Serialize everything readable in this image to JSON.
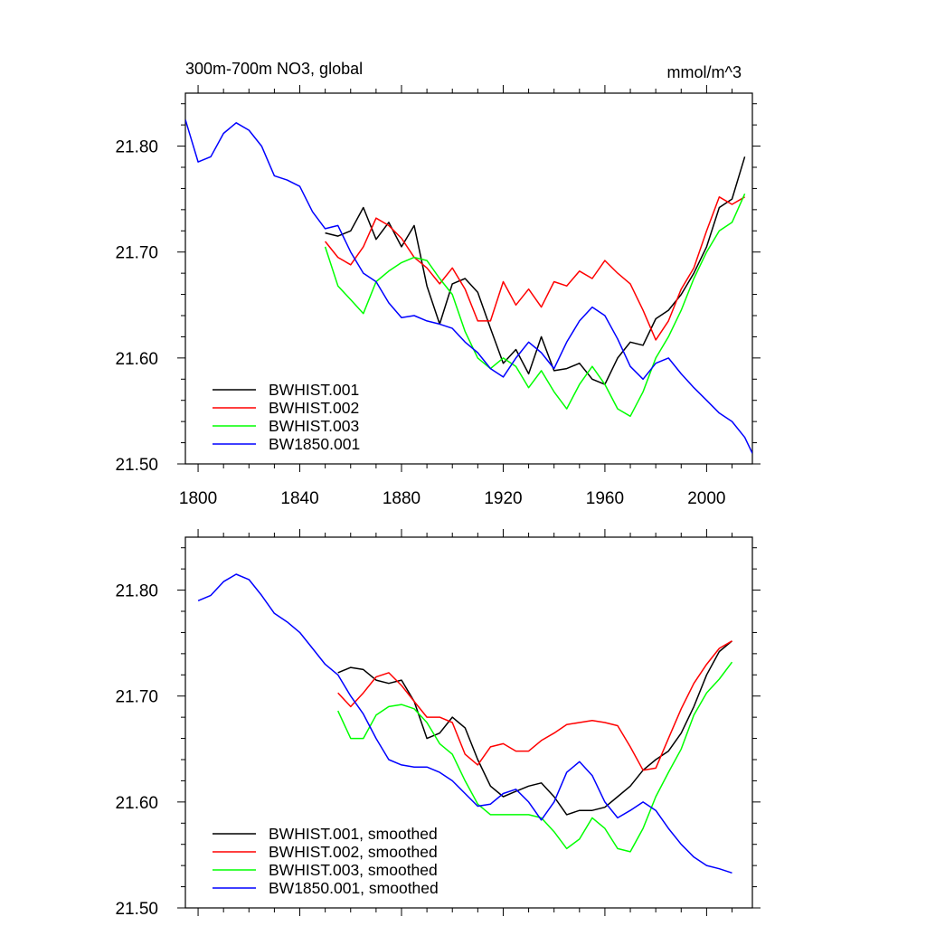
{
  "figure": {
    "title_left": "300m-700m NO3, global",
    "title_right": "mmol/m^3"
  },
  "chart_data": [
    {
      "type": "line",
      "title": "300m-700m NO3, global",
      "units": "mmol/m^3",
      "xlim": [
        1795,
        2018
      ],
      "ylim": [
        21.5,
        21.85
      ],
      "xticks": [
        1800,
        1840,
        1880,
        1920,
        1960,
        2000
      ],
      "yticks": [
        21.5,
        21.6,
        21.7,
        21.8
      ],
      "ytick_labels": [
        "21.50",
        "21.60",
        "21.70",
        "21.80"
      ],
      "legend_position": "bottom-left",
      "series": [
        {
          "name": "BWHIST.001",
          "color": "#000000",
          "x": [
            1850,
            1855,
            1860,
            1865,
            1870,
            1875,
            1880,
            1885,
            1890,
            1895,
            1900,
            1905,
            1910,
            1915,
            1920,
            1925,
            1930,
            1935,
            1940,
            1945,
            1950,
            1955,
            1960,
            1965,
            1970,
            1975,
            1980,
            1985,
            1990,
            1995,
            2000,
            2005,
            2010,
            2015
          ],
          "y": [
            21.718,
            21.715,
            21.72,
            21.742,
            21.712,
            21.728,
            21.705,
            21.725,
            21.668,
            21.632,
            21.67,
            21.675,
            21.662,
            21.628,
            21.595,
            21.608,
            21.585,
            21.62,
            21.588,
            21.59,
            21.595,
            21.58,
            21.575,
            21.6,
            21.615,
            21.612,
            21.637,
            21.645,
            21.66,
            21.68,
            21.705,
            21.742,
            21.75,
            21.79
          ]
        },
        {
          "name": "BWHIST.002",
          "color": "#ff0000",
          "x": [
            1850,
            1855,
            1860,
            1865,
            1870,
            1875,
            1880,
            1885,
            1890,
            1895,
            1900,
            1905,
            1910,
            1915,
            1920,
            1925,
            1930,
            1935,
            1940,
            1945,
            1950,
            1955,
            1960,
            1965,
            1970,
            1975,
            1980,
            1985,
            1990,
            1995,
            2000,
            2005,
            2010,
            2015
          ],
          "y": [
            21.71,
            21.695,
            21.688,
            21.705,
            21.732,
            21.725,
            21.713,
            21.695,
            21.685,
            21.67,
            21.685,
            21.665,
            21.635,
            21.635,
            21.672,
            21.65,
            21.665,
            21.648,
            21.672,
            21.668,
            21.682,
            21.675,
            21.692,
            21.68,
            21.67,
            21.645,
            21.617,
            21.635,
            21.665,
            21.685,
            21.72,
            21.752,
            21.745,
            21.752
          ]
        },
        {
          "name": "BWHIST.003",
          "color": "#00ff00",
          "x": [
            1850,
            1855,
            1860,
            1865,
            1870,
            1875,
            1880,
            1885,
            1890,
            1895,
            1900,
            1905,
            1910,
            1915,
            1920,
            1925,
            1930,
            1935,
            1940,
            1945,
            1950,
            1955,
            1960,
            1965,
            1970,
            1975,
            1980,
            1985,
            1990,
            1995,
            2000,
            2005,
            2010,
            2015
          ],
          "y": [
            21.705,
            21.668,
            21.655,
            21.642,
            21.672,
            21.682,
            21.69,
            21.695,
            21.692,
            21.675,
            21.66,
            21.625,
            21.6,
            21.59,
            21.6,
            21.592,
            21.572,
            21.588,
            21.568,
            21.552,
            21.575,
            21.592,
            21.575,
            21.552,
            21.545,
            21.568,
            21.6,
            21.62,
            21.645,
            21.675,
            21.7,
            21.72,
            21.728,
            21.755
          ]
        },
        {
          "name": "BW1850.001",
          "color": "#0000ff",
          "x": [
            1795,
            1800,
            1805,
            1810,
            1815,
            1820,
            1825,
            1830,
            1835,
            1840,
            1845,
            1850,
            1855,
            1860,
            1865,
            1870,
            1875,
            1880,
            1885,
            1890,
            1895,
            1900,
            1905,
            1910,
            1915,
            1920,
            1925,
            1930,
            1935,
            1940,
            1945,
            1950,
            1955,
            1960,
            1965,
            1970,
            1975,
            1980,
            1985,
            1990,
            1995,
            2000,
            2005,
            2010,
            2015,
            2018
          ],
          "y": [
            21.825,
            21.785,
            21.79,
            21.812,
            21.822,
            21.815,
            21.8,
            21.772,
            21.768,
            21.762,
            21.738,
            21.722,
            21.725,
            21.7,
            21.68,
            21.672,
            21.652,
            21.638,
            21.64,
            21.635,
            21.632,
            21.628,
            21.615,
            21.605,
            21.59,
            21.582,
            21.6,
            21.615,
            21.605,
            21.59,
            21.615,
            21.635,
            21.648,
            21.64,
            21.618,
            21.592,
            21.58,
            21.595,
            21.6,
            21.585,
            21.572,
            21.56,
            21.548,
            21.54,
            21.525,
            21.51
          ]
        }
      ]
    },
    {
      "type": "line",
      "title": "",
      "xlim": [
        1795,
        2018
      ],
      "ylim": [
        21.5,
        21.85
      ],
      "xticks": [
        1800,
        1840,
        1880,
        1920,
        1960,
        2000
      ],
      "yticks": [
        21.5,
        21.6,
        21.7,
        21.8
      ],
      "ytick_labels": [
        "21.50",
        "21.60",
        "21.70",
        "21.80"
      ],
      "legend_position": "bottom-left",
      "series": [
        {
          "name": "BWHIST.001, smoothed",
          "color": "#000000",
          "x": [
            1855,
            1860,
            1865,
            1870,
            1875,
            1880,
            1885,
            1890,
            1895,
            1900,
            1905,
            1910,
            1915,
            1920,
            1925,
            1930,
            1935,
            1940,
            1945,
            1950,
            1955,
            1960,
            1965,
            1970,
            1975,
            1980,
            1985,
            1990,
            1995,
            2000,
            2005,
            2010
          ],
          "y": [
            21.722,
            21.727,
            21.725,
            21.715,
            21.712,
            21.715,
            21.695,
            21.66,
            21.665,
            21.68,
            21.67,
            21.64,
            21.615,
            21.605,
            21.61,
            21.615,
            21.618,
            21.605,
            21.588,
            21.592,
            21.592,
            21.595,
            21.605,
            21.615,
            21.63,
            21.64,
            21.648,
            21.665,
            21.69,
            21.72,
            21.742,
            21.752
          ]
        },
        {
          "name": "BWHIST.002, smoothed",
          "color": "#ff0000",
          "x": [
            1855,
            1860,
            1865,
            1870,
            1875,
            1880,
            1885,
            1890,
            1895,
            1900,
            1905,
            1910,
            1915,
            1920,
            1925,
            1930,
            1935,
            1940,
            1945,
            1950,
            1955,
            1960,
            1965,
            1970,
            1975,
            1980,
            1985,
            1990,
            1995,
            2000,
            2005,
            2010
          ],
          "y": [
            21.703,
            21.69,
            21.703,
            21.718,
            21.722,
            21.71,
            21.695,
            21.68,
            21.68,
            21.675,
            21.645,
            21.635,
            21.652,
            21.655,
            21.648,
            21.648,
            21.658,
            21.665,
            21.673,
            21.675,
            21.677,
            21.675,
            21.672,
            21.652,
            21.63,
            21.632,
            21.66,
            21.688,
            21.712,
            21.73,
            21.745,
            21.752
          ]
        },
        {
          "name": "BWHIST.003, smoothed",
          "color": "#00ff00",
          "x": [
            1855,
            1860,
            1865,
            1870,
            1875,
            1880,
            1885,
            1890,
            1895,
            1900,
            1905,
            1910,
            1915,
            1920,
            1925,
            1930,
            1935,
            1940,
            1945,
            1950,
            1955,
            1960,
            1965,
            1970,
            1975,
            1980,
            1985,
            1990,
            1995,
            2000,
            2005,
            2010
          ],
          "y": [
            21.686,
            21.66,
            21.66,
            21.682,
            21.69,
            21.692,
            21.688,
            21.675,
            21.655,
            21.645,
            21.62,
            21.598,
            21.588,
            21.588,
            21.588,
            21.588,
            21.585,
            21.572,
            21.556,
            21.565,
            21.585,
            21.575,
            21.556,
            21.553,
            21.575,
            21.605,
            21.628,
            21.65,
            21.682,
            21.703,
            21.716,
            21.732
          ]
        },
        {
          "name": "BW1850.001, smoothed",
          "color": "#0000ff",
          "x": [
            1800,
            1805,
            1810,
            1815,
            1820,
            1825,
            1830,
            1835,
            1840,
            1845,
            1850,
            1855,
            1860,
            1865,
            1870,
            1875,
            1880,
            1885,
            1890,
            1895,
            1900,
            1905,
            1910,
            1915,
            1920,
            1925,
            1930,
            1935,
            1940,
            1945,
            1950,
            1955,
            1960,
            1965,
            1970,
            1975,
            1980,
            1985,
            1990,
            1995,
            2000,
            2005,
            2010
          ],
          "y": [
            21.79,
            21.795,
            21.808,
            21.815,
            21.81,
            21.795,
            21.778,
            21.77,
            21.76,
            21.745,
            21.73,
            21.72,
            21.7,
            21.683,
            21.66,
            21.64,
            21.635,
            21.633,
            21.633,
            21.628,
            21.62,
            21.608,
            21.596,
            21.598,
            21.608,
            21.612,
            21.6,
            21.583,
            21.6,
            21.628,
            21.638,
            21.625,
            21.6,
            21.585,
            21.592,
            21.6,
            21.592,
            21.575,
            21.56,
            21.548,
            21.54,
            21.537,
            21.533
          ]
        }
      ]
    }
  ]
}
